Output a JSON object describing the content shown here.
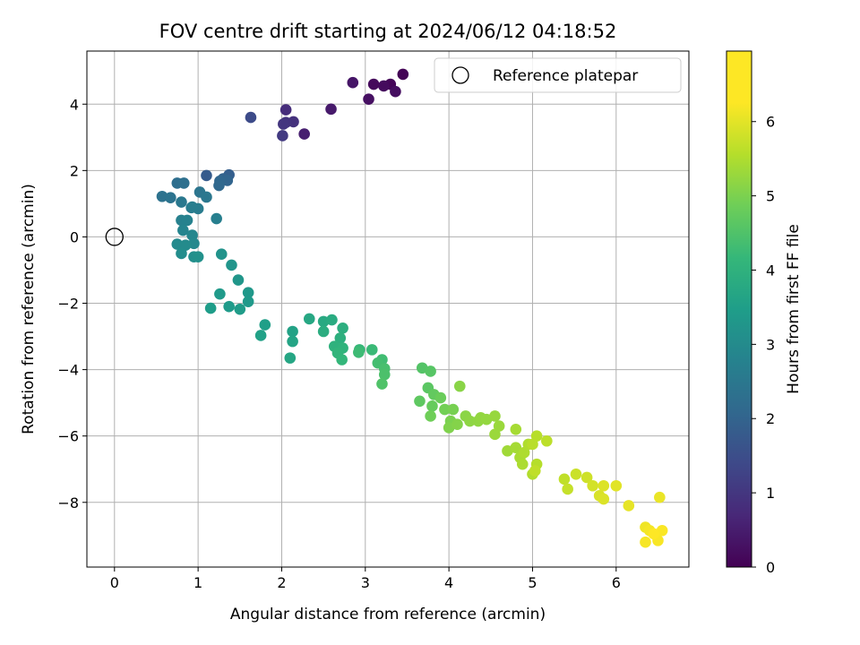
{
  "chart_data": {
    "type": "scatter",
    "title": "FOV centre drift starting at 2024/06/12 04:18:52",
    "xlabel": "Angular distance from reference (arcmin)",
    "ylabel": "Rotation from reference (arcmin)",
    "xlim": [
      -0.33,
      6.87
    ],
    "ylim": [
      -9.95,
      5.6
    ],
    "xticks": [
      0,
      1,
      2,
      3,
      4,
      5,
      6
    ],
    "yticks": [
      -8,
      -6,
      -4,
      -2,
      0,
      2,
      4
    ],
    "grid": true,
    "colormap": "viridis",
    "colorbar": {
      "label": "Hours from first FF file",
      "range": [
        0,
        6.95
      ],
      "ticks": [
        0,
        1,
        2,
        3,
        4,
        5,
        6
      ]
    },
    "legend": {
      "placement": "top-right",
      "entries": [
        "Reference platepar"
      ]
    },
    "reference_point": {
      "x": 0,
      "y": 0
    },
    "series": [
      {
        "points": [
          [
            3.45,
            4.9,
            0.05
          ],
          [
            3.3,
            4.6,
            0.1
          ],
          [
            3.1,
            4.6,
            0.15
          ],
          [
            3.22,
            4.55,
            0.2
          ],
          [
            3.36,
            4.38,
            0.25
          ],
          [
            3.04,
            4.15,
            0.3
          ],
          [
            2.85,
            4.65,
            0.4
          ],
          [
            2.59,
            3.85,
            0.5
          ],
          [
            2.27,
            3.1,
            0.6
          ],
          [
            2.05,
            3.83,
            0.9
          ],
          [
            2.14,
            3.47,
            1.0
          ],
          [
            2.05,
            3.45,
            1.05
          ],
          [
            2.02,
            3.4,
            1.1
          ],
          [
            2.01,
            3.05,
            1.2
          ],
          [
            1.63,
            3.6,
            1.6
          ],
          [
            1.1,
            1.85,
            2.0
          ],
          [
            1.37,
            1.87,
            2.1
          ],
          [
            1.3,
            1.75,
            2.2
          ],
          [
            1.35,
            1.7,
            2.25
          ],
          [
            1.26,
            1.68,
            2.3
          ],
          [
            1.25,
            1.55,
            2.35
          ],
          [
            0.75,
            1.62,
            2.5
          ],
          [
            0.83,
            1.62,
            2.55
          ],
          [
            0.57,
            1.22,
            2.6
          ],
          [
            0.67,
            1.18,
            2.65
          ],
          [
            1.02,
            1.35,
            2.7
          ],
          [
            1.1,
            1.2,
            2.75
          ],
          [
            0.8,
            1.05,
            2.8
          ],
          [
            0.92,
            0.88,
            2.85
          ],
          [
            1.0,
            0.85,
            2.9
          ],
          [
            0.93,
            0.9,
            2.95
          ],
          [
            1.22,
            0.55,
            3.0
          ],
          [
            0.8,
            0.5,
            3.05
          ],
          [
            0.87,
            0.5,
            3.1
          ],
          [
            0.82,
            0.2,
            3.15
          ],
          [
            0.93,
            0.05,
            3.2
          ],
          [
            0.95,
            -0.2,
            3.25
          ],
          [
            0.75,
            -0.22,
            3.3
          ],
          [
            0.85,
            -0.25,
            3.35
          ],
          [
            0.8,
            -0.5,
            3.4
          ],
          [
            0.95,
            -0.6,
            3.45
          ],
          [
            1.0,
            -0.6,
            3.5
          ],
          [
            1.28,
            -0.52,
            3.55
          ],
          [
            1.4,
            -0.85,
            3.6
          ],
          [
            1.48,
            -1.3,
            3.65
          ],
          [
            1.6,
            -1.68,
            3.7
          ],
          [
            1.6,
            -1.95,
            3.72
          ],
          [
            1.26,
            -1.72,
            3.75
          ],
          [
            1.37,
            -2.1,
            3.78
          ],
          [
            1.5,
            -2.18,
            3.8
          ],
          [
            1.15,
            -2.15,
            3.82
          ],
          [
            1.8,
            -2.65,
            3.9
          ],
          [
            1.75,
            -2.97,
            3.95
          ],
          [
            2.13,
            -2.85,
            4.0
          ],
          [
            2.13,
            -3.15,
            4.05
          ],
          [
            2.1,
            -3.65,
            4.1
          ],
          [
            2.33,
            -2.47,
            4.15
          ],
          [
            2.5,
            -2.55,
            4.2
          ],
          [
            2.6,
            -2.5,
            4.25
          ],
          [
            2.5,
            -2.85,
            4.3
          ],
          [
            2.73,
            -2.75,
            4.35
          ],
          [
            2.7,
            -3.05,
            4.4
          ],
          [
            2.63,
            -3.3,
            4.45
          ],
          [
            2.73,
            -3.35,
            4.5
          ],
          [
            2.67,
            -3.5,
            4.55
          ],
          [
            2.72,
            -3.7,
            4.6
          ],
          [
            2.93,
            -3.4,
            4.65
          ],
          [
            3.08,
            -3.4,
            4.7
          ],
          [
            2.92,
            -3.48,
            4.75
          ],
          [
            3.2,
            -3.7,
            4.8
          ],
          [
            3.15,
            -3.8,
            4.85
          ],
          [
            3.23,
            -3.97,
            4.9
          ],
          [
            3.23,
            -4.15,
            4.95
          ],
          [
            3.2,
            -4.43,
            5.0
          ],
          [
            3.68,
            -3.95,
            5.05
          ],
          [
            3.78,
            -4.05,
            5.1
          ],
          [
            3.75,
            -4.55,
            5.15
          ],
          [
            3.65,
            -4.95,
            5.2
          ],
          [
            3.82,
            -4.75,
            5.25
          ],
          [
            3.8,
            -5.1,
            5.3
          ],
          [
            3.9,
            -4.85,
            5.35
          ],
          [
            3.78,
            -5.4,
            5.4
          ],
          [
            3.95,
            -5.2,
            5.45
          ],
          [
            4.05,
            -5.2,
            5.5
          ],
          [
            4.02,
            -5.55,
            5.55
          ],
          [
            4.0,
            -5.75,
            5.6
          ],
          [
            4.1,
            -5.65,
            5.65
          ],
          [
            4.13,
            -4.5,
            5.7
          ],
          [
            4.2,
            -5.4,
            5.72
          ],
          [
            4.25,
            -5.55,
            5.75
          ],
          [
            4.35,
            -5.55,
            5.78
          ],
          [
            4.38,
            -5.45,
            5.8
          ],
          [
            4.45,
            -5.5,
            5.82
          ],
          [
            4.55,
            -5.4,
            5.85
          ],
          [
            4.6,
            -5.7,
            5.88
          ],
          [
            4.55,
            -5.95,
            5.9
          ],
          [
            4.7,
            -6.45,
            5.95
          ],
          [
            4.8,
            -6.35,
            6.0
          ],
          [
            4.8,
            -5.8,
            6.02
          ],
          [
            4.85,
            -6.65,
            6.05
          ],
          [
            4.88,
            -6.85,
            6.08
          ],
          [
            4.9,
            -6.5,
            6.1
          ],
          [
            4.95,
            -6.25,
            6.12
          ],
          [
            5.0,
            -7.15,
            6.15
          ],
          [
            5.05,
            -6.85,
            6.18
          ],
          [
            5.05,
            -6.0,
            6.2
          ],
          [
            5.0,
            -6.25,
            6.22
          ],
          [
            5.17,
            -6.15,
            6.25
          ],
          [
            5.03,
            -7.05,
            6.28
          ],
          [
            5.38,
            -7.3,
            6.3
          ],
          [
            5.42,
            -7.6,
            6.35
          ],
          [
            5.52,
            -7.15,
            6.4
          ],
          [
            5.65,
            -7.25,
            6.45
          ],
          [
            5.72,
            -7.5,
            6.5
          ],
          [
            5.8,
            -7.8,
            6.55
          ],
          [
            5.85,
            -7.9,
            6.58
          ],
          [
            5.85,
            -7.5,
            6.6
          ],
          [
            6.0,
            -7.5,
            6.65
          ],
          [
            6.15,
            -8.1,
            6.7
          ],
          [
            6.52,
            -7.85,
            6.75
          ],
          [
            6.35,
            -8.75,
            6.8
          ],
          [
            6.4,
            -8.85,
            6.85
          ],
          [
            6.35,
            -9.2,
            6.88
          ],
          [
            6.5,
            -9.15,
            6.9
          ],
          [
            6.55,
            -8.85,
            6.92
          ],
          [
            6.45,
            -8.95,
            6.95
          ]
        ]
      }
    ]
  }
}
